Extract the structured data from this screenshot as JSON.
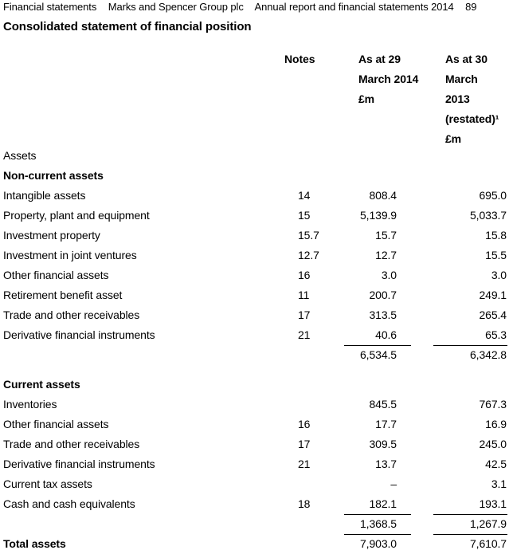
{
  "header": {
    "section": "Financial statements",
    "company": "Marks and Spencer Group plc",
    "report": "Annual report and financial statements 2014",
    "page": "89"
  },
  "title": "Consolidated statement of financial position",
  "columns": {
    "notes": "Notes",
    "y2014": [
      "As at 29",
      "March 2014",
      "£m"
    ],
    "y2013": [
      "As at 30",
      "March",
      "2013",
      "(restated)¹",
      "£m"
    ]
  },
  "assets_heading": "Assets",
  "noncurrent": {
    "heading": "Non-current assets",
    "rows": [
      {
        "label": "Intangible assets",
        "note": "14",
        "v2014": "808.4",
        "v2013": "695.0"
      },
      {
        "label": "Property, plant and equipment",
        "note": "15",
        "v2014": "5,139.9",
        "v2013": "5,033.7"
      },
      {
        "label": "Investment property",
        "note": "15.7",
        "v2014": "15.7",
        "v2013": "15.8"
      },
      {
        "label": "Investment in joint ventures",
        "note": "12.7",
        "v2014": "12.7",
        "v2013": "15.5"
      },
      {
        "label": "Other financial assets",
        "note": "16",
        "v2014": "3.0",
        "v2013": "3.0"
      },
      {
        "label": "Retirement benefit asset",
        "note": "11",
        "v2014": "200.7",
        "v2013": "249.1"
      },
      {
        "label": "Trade and other receivables",
        "note": "17",
        "v2014": "313.5",
        "v2013": "265.4"
      },
      {
        "label": "Derivative financial instruments",
        "note": "21",
        "v2014": "40.6",
        "v2013": "65.3"
      }
    ],
    "total2014": "6,534.5",
    "total2013": "6,342.8"
  },
  "current": {
    "heading": "Current assets",
    "rows": [
      {
        "label": "Inventories",
        "note": "",
        "v2014": "845.5",
        "v2013": "767.3"
      },
      {
        "label": "Other financial assets",
        "note": "16",
        "v2014": "17.7",
        "v2013": "16.9"
      },
      {
        "label": "Trade and other receivables",
        "note": "17",
        "v2014": "309.5",
        "v2013": "245.0"
      },
      {
        "label": "Derivative financial instruments",
        "note": "21",
        "v2014": "13.7",
        "v2013": "42.5"
      },
      {
        "label": "Current tax assets",
        "note": "",
        "v2014": "–",
        "v2013": "3.1"
      },
      {
        "label": "Cash and cash equivalents",
        "note": "18",
        "v2014": "182.1",
        "v2013": "193.1"
      }
    ],
    "total2014": "1,368.5",
    "total2013": "1,267.9"
  },
  "total_assets": {
    "label": "Total assets",
    "v2014": "7,903.0",
    "v2013": "7,610.7"
  }
}
